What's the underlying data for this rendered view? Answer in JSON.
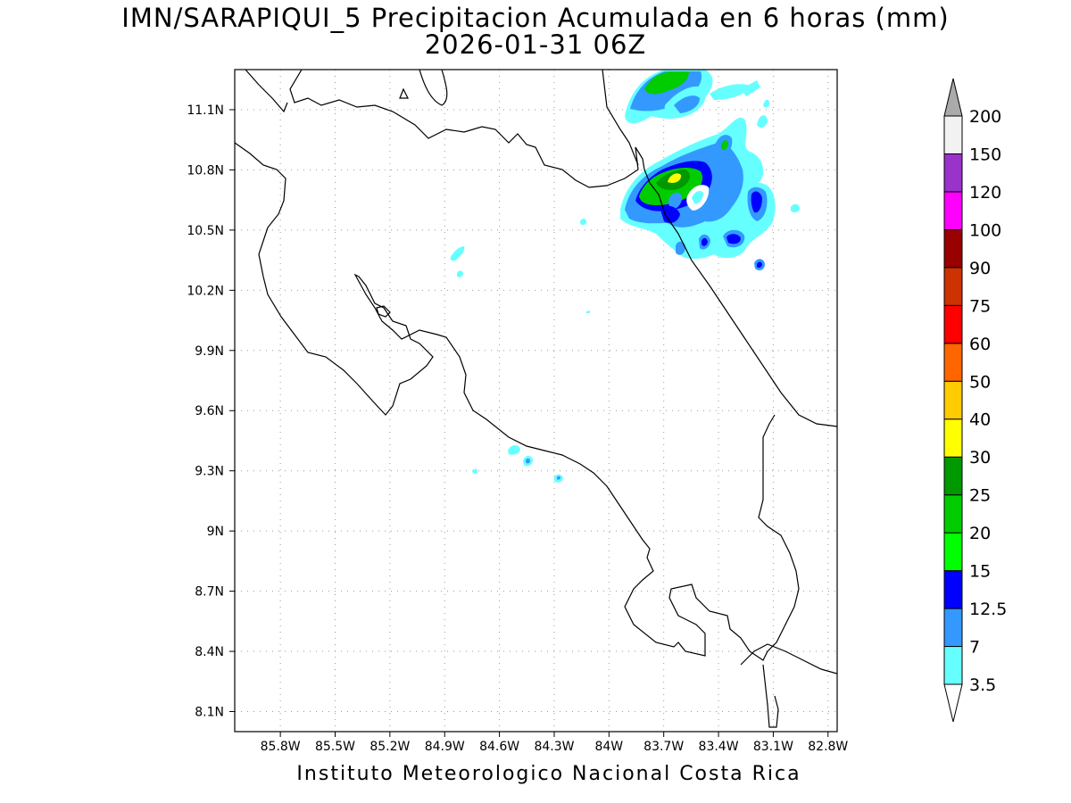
{
  "title": {
    "line1": "IMN/SARAPIQUI_5 Precipitacion Acumulada en 6 horas (mm)",
    "line2": "2026-01-31 06Z"
  },
  "footer": "Instituto Meteorologico Nacional Costa Rica",
  "map": {
    "lon_range": [
      -86.05,
      -82.75
    ],
    "lat_range": [
      8.0,
      11.3
    ],
    "lat_ticks": [
      "11.1N",
      "10.8N",
      "10.5N",
      "10.2N",
      "9.9N",
      "9.6N",
      "9.3N",
      "9N",
      "8.7N",
      "8.4N",
      "8.1N"
    ],
    "lon_ticks": [
      "85.8W",
      "85.5W",
      "85.2W",
      "84.9W",
      "84.6W",
      "84.3W",
      "84W",
      "83.7W",
      "83.4W",
      "83.1W",
      "82.8W"
    ],
    "grid": "dotted",
    "coastline_color": "#000000"
  },
  "colorbar": {
    "labels": [
      "3.5",
      "7",
      "12.5",
      "15",
      "20",
      "25",
      "30",
      "40",
      "50",
      "60",
      "75",
      "90",
      "100",
      "120",
      "150",
      "200"
    ],
    "colors": [
      "#66ffff",
      "#3399ff",
      "#0000ff",
      "#00ff00",
      "#00cc00",
      "#009900",
      "#ffff00",
      "#ffcc00",
      "#ff6600",
      "#ff0000",
      "#cc3300",
      "#990000",
      "#ff00ff",
      "#9933cc",
      "#f2f2f2",
      "#aaaaaa"
    ]
  }
}
